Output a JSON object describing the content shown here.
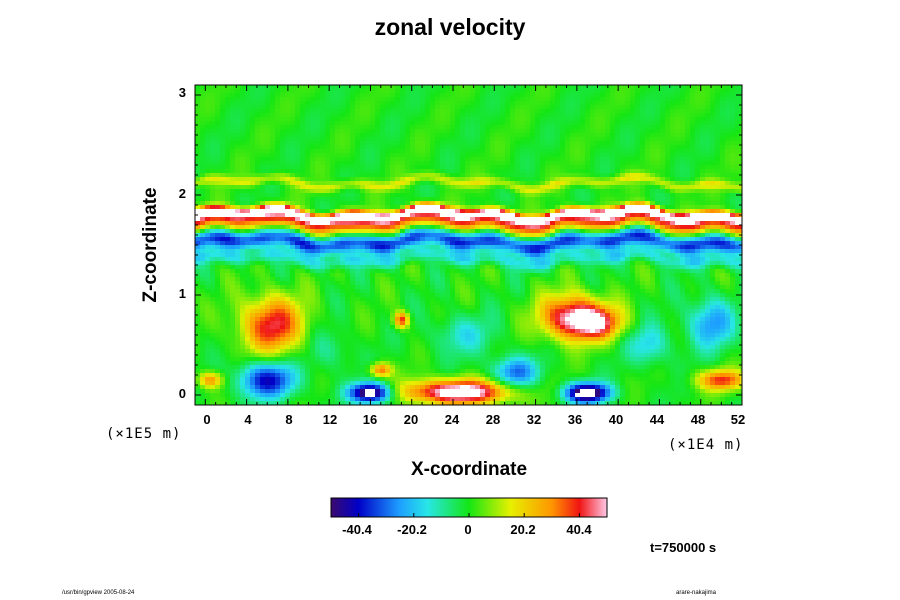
{
  "chart_data": {
    "type": "heatmap",
    "title": "zonal velocity",
    "xlabel": "X-coordinate",
    "ylabel": "Z-coordinate",
    "x_multiplier": "(×1E4 m)",
    "y_multiplier": "(×1E5 m)",
    "xlim": [
      -1,
      52
    ],
    "ylim": [
      -0.1,
      3.1
    ],
    "x_ticks": [
      "0",
      "4",
      "8",
      "12",
      "16",
      "20",
      "24",
      "28",
      "32",
      "36",
      "40",
      "44",
      "48",
      "52"
    ],
    "y_ticks": [
      "0",
      "1",
      "2",
      "3"
    ],
    "colorbar": {
      "ticks": [
        "-40.4",
        "-20.2",
        "0",
        "20.2",
        "40.4"
      ],
      "min": -50.5,
      "max": 50.5
    },
    "time_label": "t=750000 s",
    "features": [
      {
        "kind": "band",
        "z": 1.81,
        "value": 48,
        "width": 0.05
      },
      {
        "kind": "band",
        "z": 1.73,
        "value": 36,
        "width": 0.09
      },
      {
        "kind": "band",
        "z": 1.53,
        "value": -34,
        "width": 0.09
      },
      {
        "kind": "band",
        "z": 1.36,
        "value": -14,
        "width": 0.07
      },
      {
        "kind": "band",
        "z": 2.12,
        "value": 14,
        "width": 0.05
      },
      {
        "kind": "blob",
        "x": 6.5,
        "z": 0.7,
        "value": 42,
        "rx": 3.0,
        "rz": 0.28
      },
      {
        "kind": "blob",
        "x": 35.5,
        "z": 0.78,
        "value": 48,
        "rx": 3.0,
        "rz": 0.22
      },
      {
        "kind": "blob",
        "x": 38,
        "z": 0.72,
        "value": 36,
        "rx": 2.5,
        "rz": 0.16
      },
      {
        "kind": "blob",
        "x": 49,
        "z": 0.72,
        "value": -26,
        "rx": 2.2,
        "rz": 0.25
      },
      {
        "kind": "blob",
        "x": 24.5,
        "z": 0.03,
        "value": 60,
        "rx": 5.0,
        "rz": 0.12
      },
      {
        "kind": "blob",
        "x": 16,
        "z": 0.02,
        "value": -60,
        "rx": 2.0,
        "rz": 0.1
      },
      {
        "kind": "blob",
        "x": 37,
        "z": 0.02,
        "value": -60,
        "rx": 2.2,
        "rz": 0.1
      },
      {
        "kind": "blob",
        "x": 6,
        "z": 0.15,
        "value": -40,
        "rx": 2.8,
        "rz": 0.18
      },
      {
        "kind": "blob",
        "x": 30,
        "z": 0.22,
        "value": -30,
        "rx": 2.2,
        "rz": 0.16
      },
      {
        "kind": "blob",
        "x": 50,
        "z": 0.15,
        "value": 38,
        "rx": 2.3,
        "rz": 0.1
      },
      {
        "kind": "blob",
        "x": 0.5,
        "z": 0.15,
        "value": 30,
        "rx": 1.2,
        "rz": 0.08
      },
      {
        "kind": "blob",
        "x": 17,
        "z": 0.25,
        "value": 34,
        "rx": 1.0,
        "rz": 0.07
      },
      {
        "kind": "blob",
        "x": 19,
        "z": 0.75,
        "value": 40,
        "rx": 0.7,
        "rz": 0.08
      },
      {
        "kind": "blob",
        "x": 25,
        "z": 0.6,
        "value": -14,
        "rx": 3.0,
        "rz": 0.2
      },
      {
        "kind": "blob",
        "x": 43,
        "z": 0.5,
        "value": -18,
        "rx": 2.0,
        "rz": 0.2
      },
      {
        "kind": "blob",
        "x": 12,
        "z": 0.45,
        "value": -10,
        "rx": 2.0,
        "rz": 0.2
      }
    ]
  },
  "footer": {
    "left": "/usr/bin/gpview 2005-08-24",
    "right": "arare-nakajima"
  }
}
